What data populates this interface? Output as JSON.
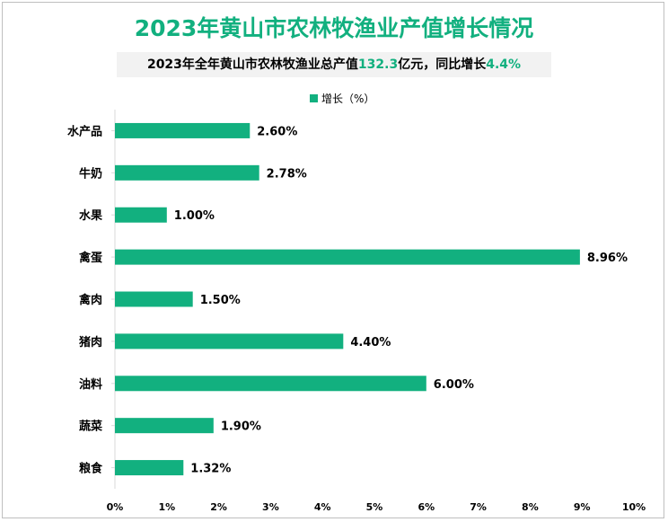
{
  "title": "2023年黄山市农林牧渔业产值增长情况",
  "subtitle": {
    "prefix": "2023年全年黄山市农林牧渔业总产值",
    "value": "132.3",
    "middle": "亿元，同比增长",
    "growth": "4.4%"
  },
  "colors": {
    "accent": "#12b07f",
    "bar": "#12b07f",
    "subtitle_bg": "#f2f2f2"
  },
  "chart_data": {
    "type": "bar",
    "orientation": "horizontal",
    "categories": [
      "水产品",
      "牛奶",
      "水果",
      "禽蛋",
      "禽肉",
      "猪肉",
      "油料",
      "蔬菜",
      "粮食"
    ],
    "series": [
      {
        "name": "增长（%）",
        "values": [
          2.6,
          2.78,
          1.0,
          8.96,
          1.5,
          4.4,
          6.0,
          1.9,
          1.32
        ],
        "labels": [
          "2.60%",
          "2.78%",
          "1.00%",
          "8.96%",
          "1.50%",
          "4.40%",
          "6.00%",
          "1.90%",
          "1.32%"
        ]
      }
    ],
    "xlim": [
      0,
      10
    ],
    "xticks": [
      "0%",
      "1%",
      "2%",
      "3%",
      "4%",
      "5%",
      "6%",
      "7%",
      "8%",
      "9%",
      "10%"
    ],
    "grid": false,
    "legend": "top-center"
  }
}
